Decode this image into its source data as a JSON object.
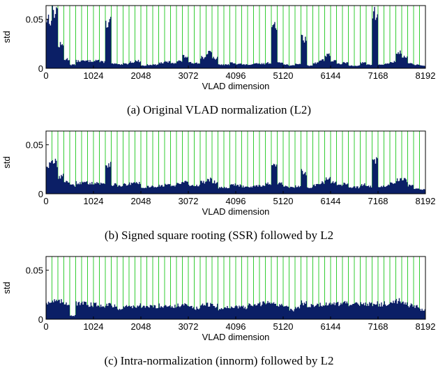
{
  "chart_data": [
    {
      "type": "bar",
      "caption": "(a) Original VLAD normalization (L2)",
      "xlabel": "VLAD dimension",
      "ylabel": "std",
      "xlim": [
        0,
        8192
      ],
      "ylim": [
        0,
        0.064
      ],
      "xticks": [
        "0",
        "1024",
        "2048",
        "3072",
        "4096",
        "5120",
        "6144",
        "7168",
        "8192"
      ],
      "yticks": [
        "0",
        "0.05"
      ],
      "bar_color": "#0b1f66",
      "separator_color": "#33cc33",
      "block_size": 128,
      "blocks": [
        0.055,
        0.063,
        0.025,
        0.01,
        0.004,
        0.008,
        0.008,
        0.008,
        0.009,
        0.007,
        0.051,
        0.005,
        0.004,
        0.005,
        0.007,
        0.008,
        0.003,
        0.004,
        0.004,
        0.006,
        0.007,
        0.006,
        0.008,
        0.013,
        0.006,
        0.006,
        0.012,
        0.017,
        0.011,
        0.004,
        0.004,
        0.006,
        0.005,
        0.004,
        0.004,
        0.005,
        0.005,
        0.006,
        0.044,
        0.007,
        0.004,
        0.003,
        0.005,
        0.033,
        0.003,
        0.006,
        0.009,
        0.015,
        0.008,
        0.005,
        0.006,
        0.003,
        0.003,
        0.006,
        0.004,
        0.059,
        0.004,
        0.005,
        0.007,
        0.017,
        0.013,
        0.005,
        0.004,
        0.003
      ]
    },
    {
      "type": "bar",
      "caption": "(b) Signed square rooting (SSR) followed by L2",
      "xlabel": "VLAD dimension",
      "ylabel": "std",
      "xlim": [
        0,
        8192
      ],
      "ylim": [
        0,
        0.064
      ],
      "xticks": [
        "0",
        "1024",
        "2048",
        "3072",
        "4096",
        "5120",
        "6144",
        "7168",
        "8192"
      ],
      "yticks": [
        "0",
        "0.05"
      ],
      "bar_color": "#0b1f66",
      "separator_color": "#33cc33",
      "block_size": 128,
      "blocks": [
        0.032,
        0.034,
        0.019,
        0.014,
        0.009,
        0.012,
        0.012,
        0.012,
        0.012,
        0.011,
        0.033,
        0.01,
        0.009,
        0.01,
        0.011,
        0.012,
        0.006,
        0.008,
        0.008,
        0.009,
        0.01,
        0.009,
        0.011,
        0.014,
        0.009,
        0.009,
        0.013,
        0.016,
        0.013,
        0.007,
        0.007,
        0.01,
        0.009,
        0.008,
        0.008,
        0.009,
        0.009,
        0.011,
        0.03,
        0.011,
        0.008,
        0.007,
        0.008,
        0.024,
        0.007,
        0.01,
        0.012,
        0.016,
        0.012,
        0.009,
        0.011,
        0.007,
        0.007,
        0.01,
        0.008,
        0.036,
        0.008,
        0.009,
        0.011,
        0.016,
        0.015,
        0.009,
        0.006,
        0.005
      ]
    },
    {
      "type": "bar",
      "caption": "(c) Intra-normalization (innorm) followed by L2",
      "xlabel": "VLAD dimension",
      "ylabel": "std",
      "xlim": [
        0,
        8192
      ],
      "ylim": [
        0,
        0.064
      ],
      "xticks": [
        "0",
        "1024",
        "2048",
        "3072",
        "4096",
        "5120",
        "6144",
        "7168",
        "8192"
      ],
      "yticks": [
        "0",
        "0.05"
      ],
      "bar_color": "#0b1f66",
      "separator_color": "#33cc33",
      "block_size": 128,
      "blocks": [
        0.019,
        0.02,
        0.019,
        0.018,
        0.004,
        0.017,
        0.017,
        0.016,
        0.016,
        0.015,
        0.017,
        0.014,
        0.012,
        0.014,
        0.014,
        0.015,
        0.013,
        0.014,
        0.014,
        0.015,
        0.015,
        0.014,
        0.015,
        0.016,
        0.013,
        0.012,
        0.015,
        0.016,
        0.015,
        0.011,
        0.013,
        0.014,
        0.014,
        0.013,
        0.015,
        0.016,
        0.017,
        0.018,
        0.017,
        0.016,
        0.015,
        0.01,
        0.014,
        0.018,
        0.015,
        0.016,
        0.016,
        0.017,
        0.016,
        0.017,
        0.018,
        0.015,
        0.016,
        0.018,
        0.017,
        0.017,
        0.016,
        0.017,
        0.019,
        0.02,
        0.018,
        0.015,
        0.014,
        0.011
      ]
    }
  ]
}
